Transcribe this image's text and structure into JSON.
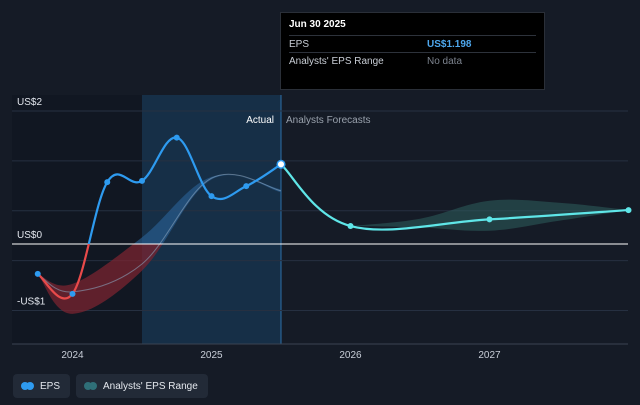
{
  "tooltip": {
    "date": "Jun 30 2025",
    "rows": [
      {
        "label": "EPS",
        "value": "US$1.198"
      },
      {
        "label": "Analysts' EPS Range",
        "value": "No data"
      }
    ]
  },
  "regions": {
    "actual": "Actual",
    "forecast": "Analysts Forecasts"
  },
  "legend": [
    {
      "label": "EPS",
      "color": "#2e9bf0"
    },
    {
      "label": "Analysts' EPS Range",
      "color": "#2f6f78"
    }
  ],
  "colors": {
    "eps": "#2e9bf0",
    "eps_negative": "#e84a4a",
    "forecast": "#5fe6e8",
    "range_fill": "#2d5f5c",
    "highlight": "#1b3a5a"
  },
  "chart_data": {
    "type": "line",
    "y_ticks": [
      {
        "value": 2,
        "label": "US$2"
      },
      {
        "value": 0,
        "label": "US$0"
      },
      {
        "value": -1,
        "label": "-US$1"
      }
    ],
    "x_ticks": [
      {
        "value": 2024.0,
        "label": "2024"
      },
      {
        "value": 2025.0,
        "label": "2025"
      },
      {
        "value": 2026.0,
        "label": "2026"
      },
      {
        "value": 2027.0,
        "label": "2027"
      }
    ],
    "xlim": [
      2023.6,
      2028.0
    ],
    "ylim": [
      -1.2,
      2.3
    ],
    "highlight_range": [
      2024.5,
      2025.5
    ],
    "actual_forecast_split": 2025.5,
    "series": [
      {
        "name": "EPS",
        "points": [
          [
            2023.75,
            -0.45
          ],
          [
            2024.0,
            -0.75
          ],
          [
            2024.25,
            0.93
          ],
          [
            2024.5,
            0.95
          ],
          [
            2024.75,
            1.6
          ],
          [
            2025.0,
            0.72
          ],
          [
            2025.25,
            0.87
          ],
          [
            2025.5,
            1.198
          ]
        ]
      },
      {
        "name": "Forecast",
        "points": [
          [
            2025.5,
            1.198
          ],
          [
            2026.0,
            0.27
          ],
          [
            2027.0,
            0.37
          ],
          [
            2028.0,
            0.51
          ]
        ]
      }
    ],
    "past_estimate": {
      "center": [
        [
          2023.75,
          -0.45
        ],
        [
          2024.0,
          -0.72
        ],
        [
          2024.5,
          -0.3
        ],
        [
          2025.0,
          0.99
        ],
        [
          2025.5,
          0.8
        ]
      ],
      "upper": [
        [
          2023.75,
          -0.45
        ],
        [
          2024.0,
          -0.6
        ],
        [
          2024.5,
          0.1
        ],
        [
          2025.0,
          1.01
        ],
        [
          2025.5,
          0.82
        ]
      ],
      "lower": [
        [
          2023.75,
          -0.45
        ],
        [
          2024.0,
          -1.05
        ],
        [
          2024.5,
          -0.4
        ],
        [
          2025.0,
          0.97
        ],
        [
          2025.5,
          0.78
        ]
      ]
    },
    "forecast_range": {
      "upper": [
        [
          2026.0,
          0.27
        ],
        [
          2026.5,
          0.38
        ],
        [
          2027.0,
          0.65
        ],
        [
          2027.5,
          0.62
        ],
        [
          2028.0,
          0.51
        ]
      ],
      "lower": [
        [
          2026.0,
          0.27
        ],
        [
          2026.5,
          0.25
        ],
        [
          2027.0,
          0.2
        ],
        [
          2027.5,
          0.35
        ],
        [
          2028.0,
          0.51
        ]
      ]
    }
  }
}
